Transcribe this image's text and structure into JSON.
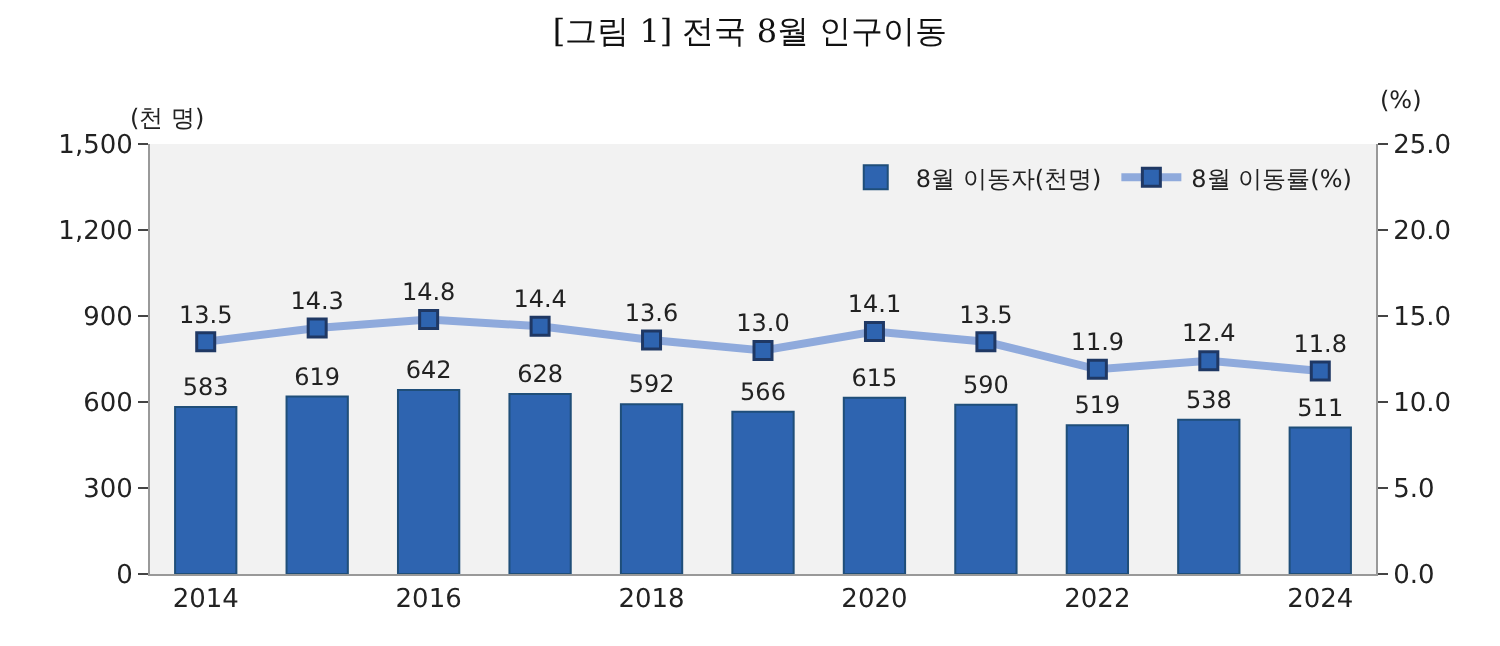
{
  "chart_data": {
    "type": "bar",
    "title": "[그림 1] 전국 8월 인구이동",
    "ylabel": "(천 명)",
    "y2label": "(%)",
    "categories": [
      "2014",
      null,
      "2016",
      null,
      "2018",
      null,
      "2020",
      null,
      "2022",
      null,
      "2024"
    ],
    "series": [
      {
        "name": "8월 이동자(천명)",
        "color": "#2e64b0",
        "values": [
          583,
          619,
          642,
          628,
          592,
          566,
          615,
          590,
          519,
          538,
          511
        ],
        "value_labels": [
          "583",
          "619",
          "642",
          "628",
          "592",
          "566",
          "615",
          "590",
          "519",
          "538",
          "511"
        ]
      },
      {
        "name": "8월 이동률(%)",
        "type": "line",
        "axis": "y2",
        "color": "#8faadc",
        "marker": "square",
        "values": [
          13.5,
          14.3,
          14.8,
          14.4,
          13.6,
          13.0,
          14.1,
          13.5,
          11.9,
          12.4,
          11.8
        ],
        "value_labels": [
          "13.5",
          "14.3",
          "14.8",
          "14.4",
          "13.6",
          "13.0",
          "14.1",
          "13.5",
          "11.9",
          "12.4",
          "11.8"
        ]
      }
    ],
    "ylim": [
      0,
      1500
    ],
    "yticks": [
      0,
      300,
      600,
      900,
      {
        "value": 1200,
        "label": "1,200"
      },
      {
        "value": 1500,
        "label": "1,500"
      }
    ],
    "y2lim": [
      0,
      25
    ],
    "y2ticks": [
      {
        "value": 0,
        "label": "0.0"
      },
      {
        "value": 5,
        "label": "5.0"
      },
      {
        "value": 10,
        "label": "10.0"
      },
      {
        "value": 15,
        "label": "15.0"
      },
      {
        "value": 20,
        "label": "20.0"
      },
      {
        "value": 25,
        "label": "25.0"
      }
    ],
    "legend": "top right",
    "grid": false
  }
}
